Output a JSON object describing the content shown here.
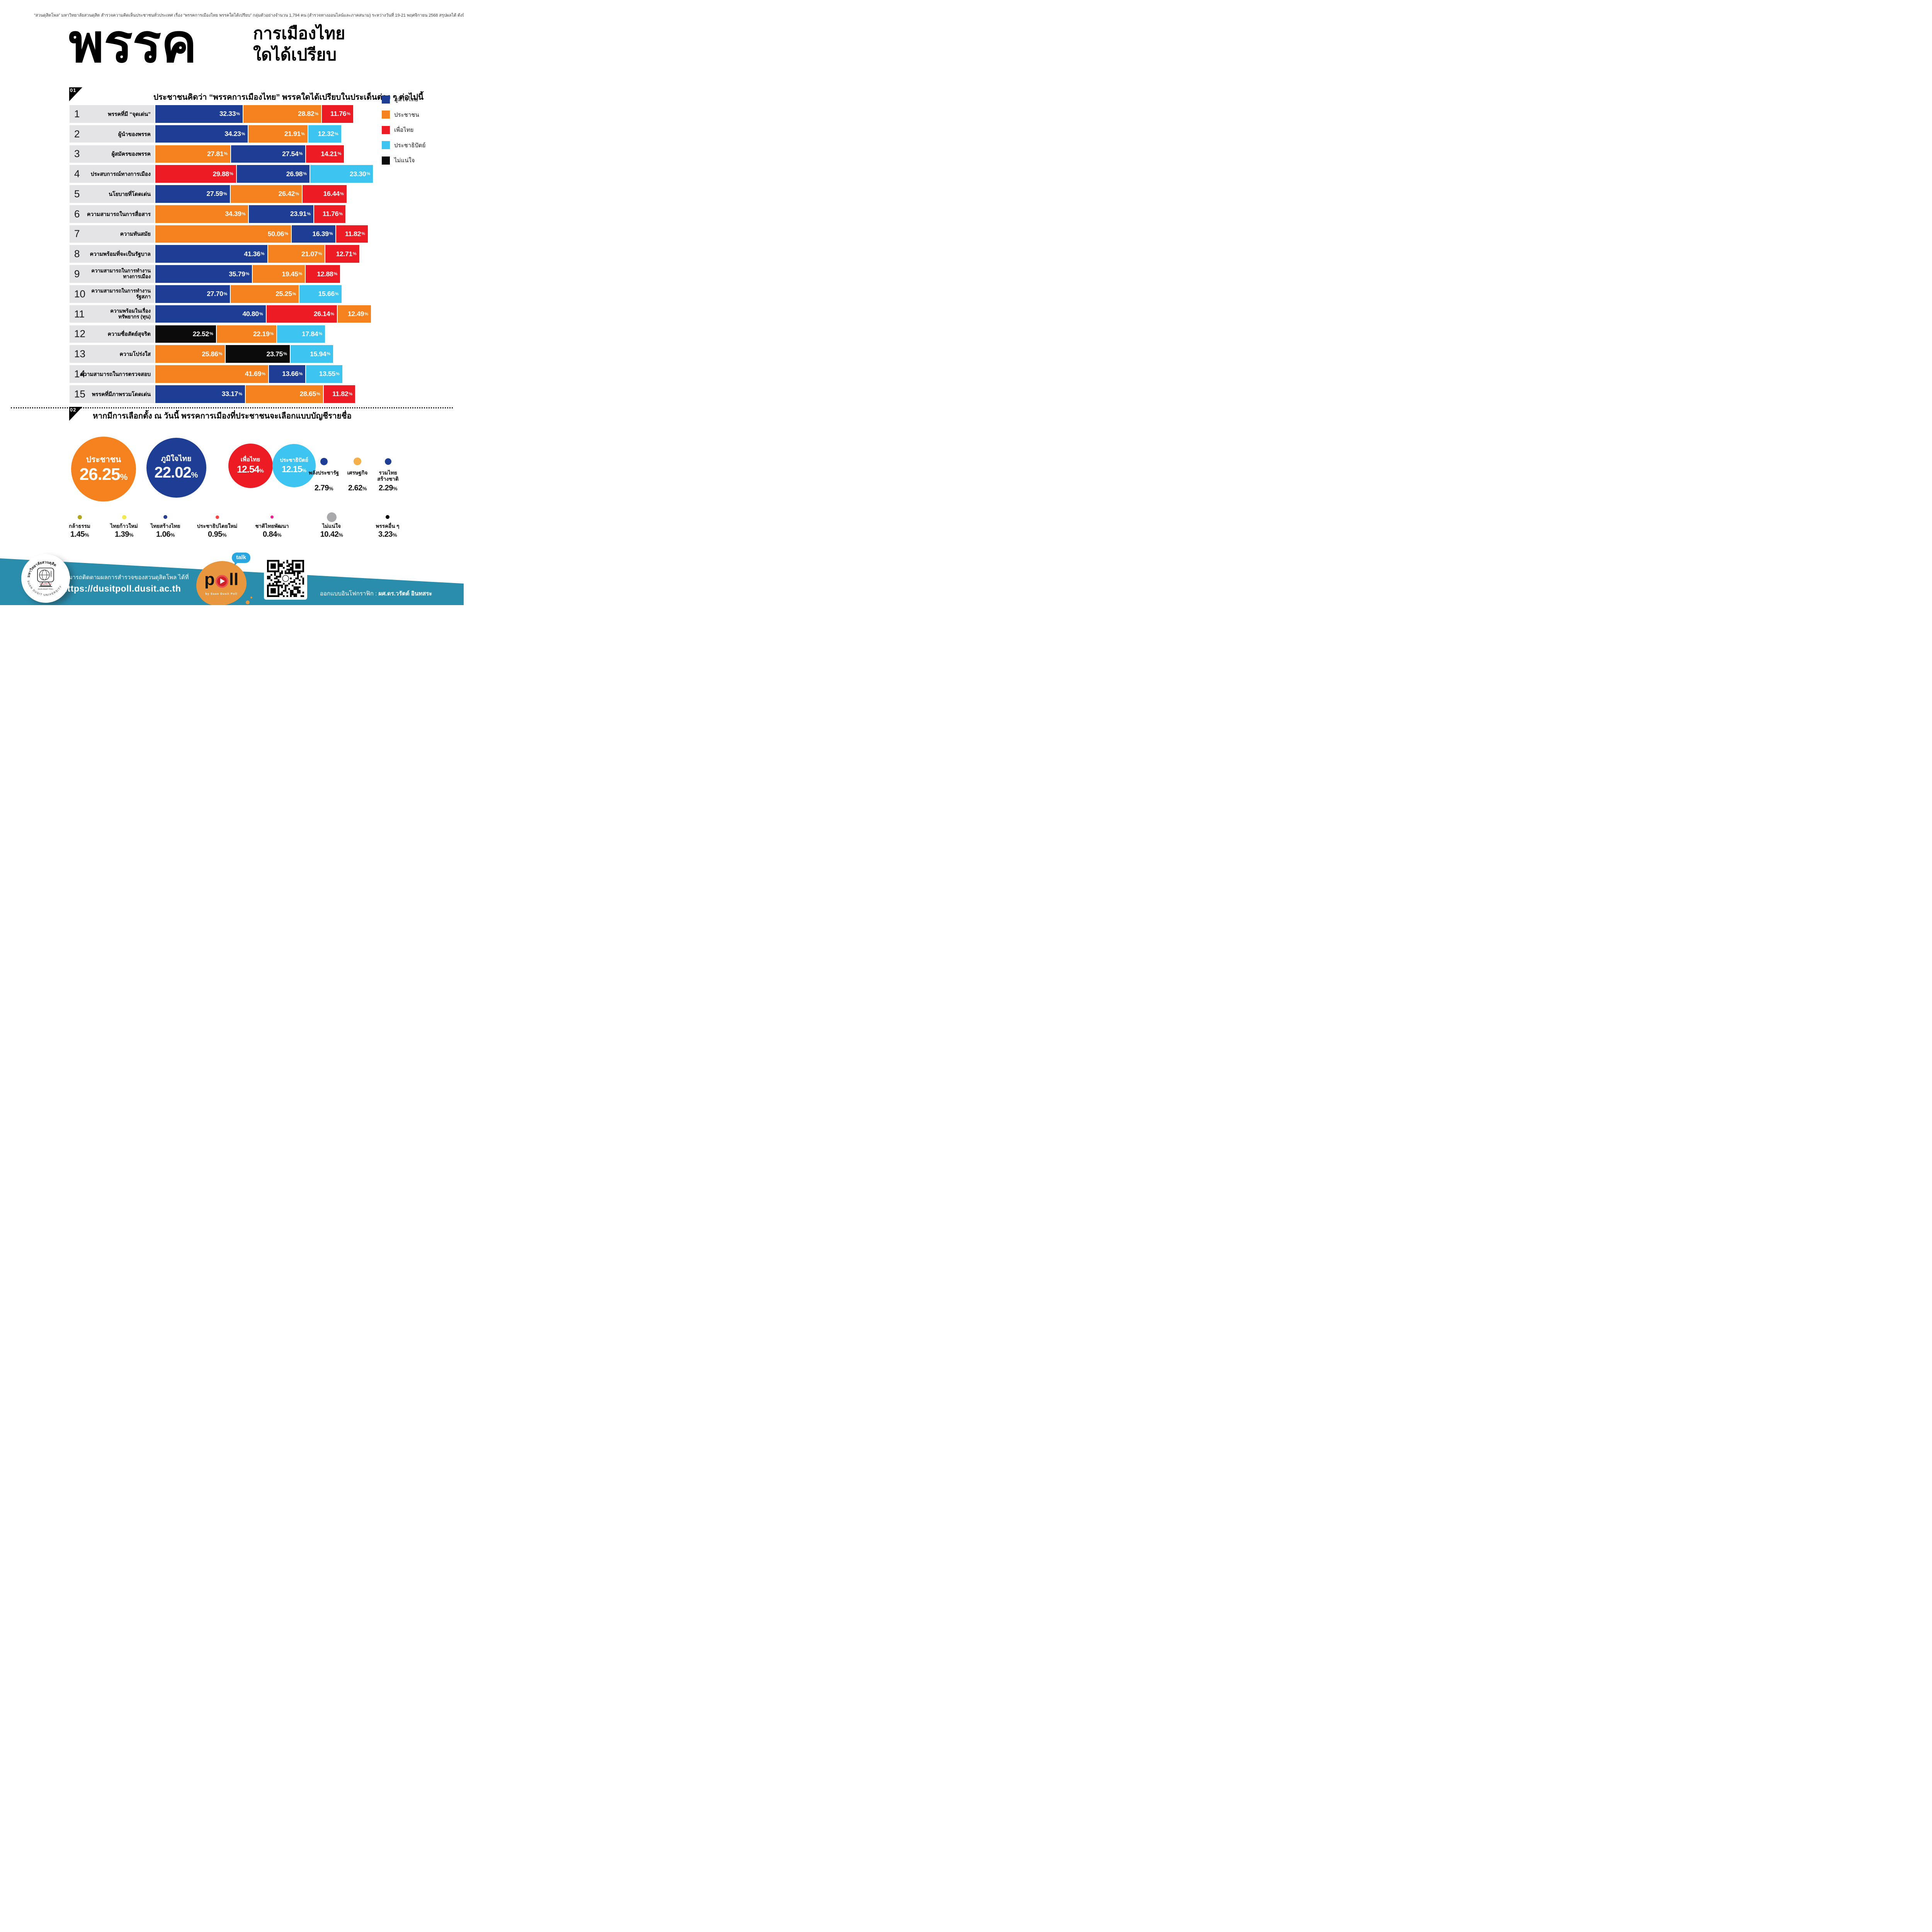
{
  "header": {
    "note": "“สวนดุสิตโพล” มหาวิทยาลัยสวนดุสิต สำรวจความคิดเห็นประชาชนทั่วประเทศ เรื่อง “พรรคการเมืองไทย พรรคใดได้เปรียบ” กลุ่มตัวอย่างจำนวน 1,794 คน  (สำรวจทางออนไลน์และภาคสนาม) ระหว่างวันที่ 19-21 พฤศจิกายน 2568  สรุปผลได้ ดังนี้"
  },
  "title": {
    "big": "พรรค",
    "line1": "การเมืองไทย",
    "line2": "ใดได้เปรียบ"
  },
  "party_colors": {
    "ภูมิใจไทย": "#1e3e95",
    "ประชาชน": "#f5821f",
    "เพื่อไทย": "#ed1c24",
    "ประชาธิปัตย์": "#3ec4f0",
    "ไม่แน่ใจ": "#0b0b0b"
  },
  "section1": {
    "badge": "01",
    "title": "ประชาชนคิดว่า “พรรคการเมืองไทย” พรรคใดได้เปรียบในประเด็นต่าง ๆ ต่อไปนี้",
    "legend": [
      {
        "label": "ภูมิใจไทย",
        "color": "#1e3e95"
      },
      {
        "label": "ประชาชน",
        "color": "#f5821f"
      },
      {
        "label": "เพื่อไทย",
        "color": "#ed1c24"
      },
      {
        "label": "ประชาธิปัตย์",
        "color": "#3ec4f0"
      },
      {
        "label": "ไม่แน่ใจ",
        "color": "#0b0b0b"
      }
    ]
  },
  "section2": {
    "badge": "02",
    "title": "หากมีการเลือกตั้ง ณ วันนี้ พรรคการเมืองที่ประชาชนจะเลือกแบบบัญชีรายชื่อ"
  },
  "chart_data": [
    {
      "type": "bar",
      "orientation": "horizontal-stacked",
      "title": "ประชาชนคิดว่า “พรรคการเมืองไทย” พรรคใดได้เปรียบในประเด็นต่าง ๆ ต่อไปนี้",
      "unit": "%",
      "legend_position": "top-right",
      "rows": [
        {
          "no": "1",
          "label": "พรรคที่มี “จุดเด่น”",
          "segments": [
            {
              "party": "ภูมิใจไทย",
              "value": 32.33
            },
            {
              "party": "ประชาชน",
              "value": 28.82
            },
            {
              "party": "เพื่อไทย",
              "value": 11.76
            }
          ]
        },
        {
          "no": "2",
          "label": "ผู้นำของพรรค",
          "segments": [
            {
              "party": "ภูมิใจไทย",
              "value": 34.23
            },
            {
              "party": "ประชาชน",
              "value": 21.91
            },
            {
              "party": "ประชาธิปัตย์",
              "value": 12.32
            }
          ]
        },
        {
          "no": "3",
          "label": "ผู้สมัครของพรรค",
          "segments": [
            {
              "party": "ประชาชน",
              "value": 27.81
            },
            {
              "party": "ภูมิใจไทย",
              "value": 27.54
            },
            {
              "party": "เพื่อไทย",
              "value": 14.21
            }
          ]
        },
        {
          "no": "4",
          "label": "ประสบการณ์ทางการเมือง",
          "segments": [
            {
              "party": "เพื่อไทย",
              "value": 29.88
            },
            {
              "party": "ภูมิใจไทย",
              "value": 26.98
            },
            {
              "party": "ประชาธิปัตย์",
              "value": 23.3
            }
          ]
        },
        {
          "no": "5",
          "label": "นโยบายที่โดดเด่น",
          "segments": [
            {
              "party": "ภูมิใจไทย",
              "value": 27.59
            },
            {
              "party": "ประชาชน",
              "value": 26.42
            },
            {
              "party": "เพื่อไทย",
              "value": 16.44
            }
          ]
        },
        {
          "no": "6",
          "label": "ความสามารถในการสื่อสาร",
          "segments": [
            {
              "party": "ประชาชน",
              "value": 34.39
            },
            {
              "party": "ภูมิใจไทย",
              "value": 23.91
            },
            {
              "party": "เพื่อไทย",
              "value": 11.76
            }
          ]
        },
        {
          "no": "7",
          "label": "ความทันสมัย",
          "segments": [
            {
              "party": "ประชาชน",
              "value": 50.06
            },
            {
              "party": "ภูมิใจไทย",
              "value": 16.39
            },
            {
              "party": "เพื่อไทย",
              "value": 11.82
            }
          ]
        },
        {
          "no": "8",
          "label": "ความพร้อมที่จะเป็นรัฐบาล",
          "segments": [
            {
              "party": "ภูมิใจไทย",
              "value": 41.36
            },
            {
              "party": "ประชาชน",
              "value": 21.07
            },
            {
              "party": "เพื่อไทย",
              "value": 12.71
            }
          ]
        },
        {
          "no": "9",
          "label": "ความสามารถในการทำงาน",
          "label2": "ทางการเมือง",
          "segments": [
            {
              "party": "ภูมิใจไทย",
              "value": 35.79
            },
            {
              "party": "ประชาชน",
              "value": 19.45
            },
            {
              "party": "เพื่อไทย",
              "value": 12.88
            }
          ]
        },
        {
          "no": "10",
          "label": "ความสามารถในการทำงาน",
          "label2": "รัฐสภา",
          "segments": [
            {
              "party": "ภูมิใจไทย",
              "value": 27.7
            },
            {
              "party": "ประชาชน",
              "value": 25.25
            },
            {
              "party": "ประชาธิปัตย์",
              "value": 15.66
            }
          ]
        },
        {
          "no": "11",
          "label": "ความพร้อมในเรื่อง",
          "label2": "ทรัพยากร (ทุน)",
          "segments": [
            {
              "party": "ภูมิใจไทย",
              "value": 40.8
            },
            {
              "party": "เพื่อไทย",
              "value": 26.14
            },
            {
              "party": "ประชาชน",
              "value": 12.49
            }
          ]
        },
        {
          "no": "12",
          "label": "ความซื่อสัตย์สุจริต",
          "segments": [
            {
              "party": "ไม่แน่ใจ",
              "value": 22.52
            },
            {
              "party": "ประชาชน",
              "value": 22.19
            },
            {
              "party": "ประชาธิปัตย์",
              "value": 17.84
            }
          ]
        },
        {
          "no": "13",
          "label": "ความโปร่งใส",
          "segments": [
            {
              "party": "ประชาชน",
              "value": 25.86
            },
            {
              "party": "ไม่แน่ใจ",
              "value": 23.75
            },
            {
              "party": "ประชาธิปัตย์",
              "value": 15.94
            }
          ]
        },
        {
          "no": "14",
          "label": "ความสามารถในการตรวจสอบ",
          "segments": [
            {
              "party": "ประชาชน",
              "value": 41.69
            },
            {
              "party": "ภูมิใจไทย",
              "value": 13.66
            },
            {
              "party": "ประชาธิปัตย์",
              "value": 13.55
            }
          ]
        },
        {
          "no": "15",
          "label": "พรรคที่มีภาพรวมโดดเด่น",
          "segments": [
            {
              "party": "ภูมิใจไทย",
              "value": 33.17
            },
            {
              "party": "ประชาชน",
              "value": 28.65
            },
            {
              "party": "เพื่อไทย",
              "value": 11.82
            }
          ]
        }
      ]
    },
    {
      "type": "bubble",
      "title": "หากมีการเลือกตั้ง ณ วันนี้ พรรคการเมืองที่ประชาชนจะเลือกแบบบัญชีรายชื่อ",
      "unit": "%",
      "points": [
        {
          "party": "ประชาชน",
          "value": 26.25,
          "color": "#f5821f"
        },
        {
          "party": "ภูมิใจไทย",
          "value": 22.02,
          "color": "#1e3e95"
        },
        {
          "party": "เพื่อไทย",
          "value": 12.54,
          "color": "#ed1c24"
        },
        {
          "party": "ประชาธิปัตย์",
          "value": 12.15,
          "color": "#3ec4f0"
        },
        {
          "party": "พลังประชารัฐ",
          "value": 2.79,
          "color": "#1e3e95"
        },
        {
          "party": "เศรษฐกิจ",
          "value": 2.62,
          "color": "#f6b04b"
        },
        {
          "party": "รวมไทยสร้างชาติ",
          "value": 2.29,
          "color": "#1e3e95",
          "label_lines": [
            "รวมไทย",
            "สร้างชาติ"
          ]
        },
        {
          "party": "กล้าธรรม",
          "value": 1.45,
          "color": "#b3a71c"
        },
        {
          "party": "ไทยก้าวใหม่",
          "value": 1.39,
          "color": "#f0e94f"
        },
        {
          "party": "ไทยสร้างไทย",
          "value": 1.06,
          "color": "#2a3e90"
        },
        {
          "party": "ประชาธิปไตยใหม่",
          "value": 0.95,
          "color": "#f9423e"
        },
        {
          "party": "ชาติไทยพัฒนา",
          "value": 0.84,
          "color": "#ec1f8f"
        },
        {
          "party": "ไม่แน่ใจ",
          "value": 10.42,
          "color": "#a9a9ab"
        },
        {
          "party": "พรรคอื่น ๆ",
          "value": 3.23,
          "color": "#000000"
        }
      ]
    }
  ],
  "footer": {
    "follow_text": "สามารถติดตามผลการสำรวจของสวนดุสิตโพล ได้ที่",
    "url": "https://dusitpoll.dusit.ac.th",
    "credit_label": "ออกแบบอินโฟกราฟิก :",
    "credit_name": "ผศ.ดร.วรัตต์ อินทสระ",
    "poll_word": "p",
    "poll_word_end": "ll",
    "poll_sub": "by Suan Dusit Poll",
    "talk": "talk",
    "logo_top": "มหาวิทยาลัยสวนดุสิต",
    "logo_bottom": "SUAN DUSIT UNIVERSITY",
    "logo_center": "สวนดุสิตโพล",
    "logo_center_en": "SUAN DUSIT POLL"
  }
}
